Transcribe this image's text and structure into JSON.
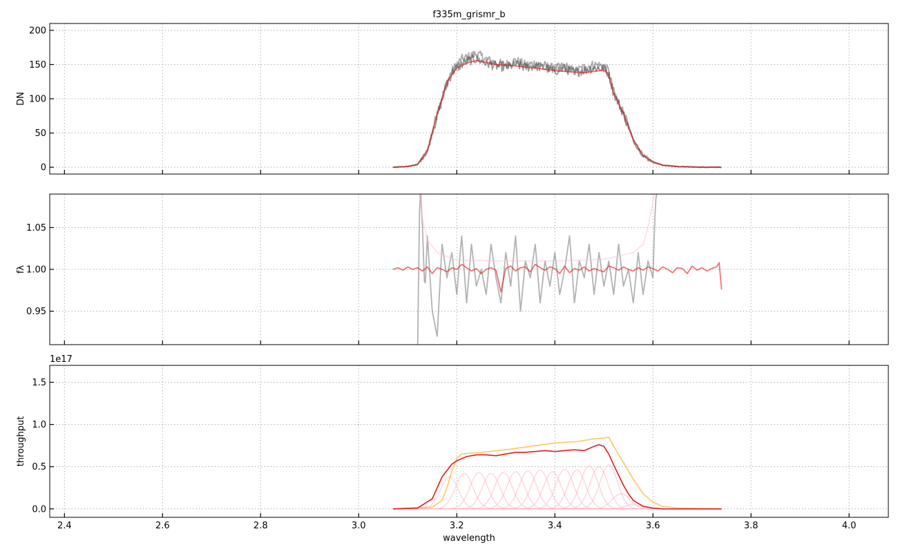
{
  "chart_data": [
    {
      "type": "line",
      "title": "f335m_grismr_b",
      "xlabel": "",
      "ylabel": "DN",
      "xlim": [
        2.37,
        4.08
      ],
      "ylim": [
        -10,
        210
      ],
      "xticks": [
        2.4,
        2.6,
        2.8,
        3.0,
        3.2,
        3.4,
        3.6,
        3.8,
        4.0
      ],
      "yticks": [
        0,
        50,
        100,
        150,
        200
      ],
      "ytick_labels": [
        "0",
        "50",
        "100",
        "150",
        "200"
      ],
      "show_x_tick_labels": false,
      "grid": true,
      "series": [
        {
          "style": "gray-noisy",
          "color": "#5a5a5a",
          "opacity": 0.5,
          "x": [
            3.07,
            3.1,
            3.12,
            3.14,
            3.16,
            3.18,
            3.19,
            3.2,
            3.21,
            3.22,
            3.24,
            3.26,
            3.28,
            3.3,
            3.32,
            3.34,
            3.36,
            3.38,
            3.4,
            3.42,
            3.44,
            3.46,
            3.48,
            3.5,
            3.51,
            3.52,
            3.54,
            3.56,
            3.58,
            3.6,
            3.62,
            3.65,
            3.7,
            3.74
          ],
          "y": [
            0,
            1,
            4,
            25,
            80,
            125,
            140,
            150,
            158,
            160,
            166,
            158,
            152,
            150,
            156,
            149,
            152,
            148,
            144,
            148,
            140,
            146,
            150,
            148,
            140,
            110,
            80,
            40,
            18,
            8,
            3,
            1,
            0,
            0
          ]
        },
        {
          "style": "gray-noisy",
          "color": "#3a3a3a",
          "opacity": 0.5,
          "x": [
            3.07,
            3.1,
            3.12,
            3.14,
            3.16,
            3.18,
            3.19,
            3.2,
            3.21,
            3.22,
            3.24,
            3.26,
            3.28,
            3.3,
            3.32,
            3.34,
            3.36,
            3.38,
            3.4,
            3.42,
            3.44,
            3.46,
            3.48,
            3.5,
            3.51,
            3.52,
            3.54,
            3.56,
            3.58,
            3.6,
            3.62,
            3.65,
            3.7,
            3.74
          ],
          "y": [
            0,
            1,
            4,
            22,
            75,
            120,
            138,
            145,
            150,
            155,
            158,
            152,
            148,
            146,
            150,
            146,
            148,
            145,
            141,
            144,
            138,
            142,
            145,
            144,
            136,
            108,
            78,
            38,
            16,
            7,
            3,
            1,
            0,
            0
          ]
        },
        {
          "style": "model",
          "color": "#e31a1c",
          "opacity": 0.65,
          "x": [
            3.07,
            3.1,
            3.12,
            3.14,
            3.16,
            3.18,
            3.2,
            3.22,
            3.24,
            3.26,
            3.28,
            3.3,
            3.32,
            3.34,
            3.36,
            3.38,
            3.4,
            3.42,
            3.44,
            3.46,
            3.48,
            3.5,
            3.51,
            3.52,
            3.54,
            3.56,
            3.58,
            3.6,
            3.62,
            3.65,
            3.7,
            3.74
          ],
          "y": [
            0,
            1,
            4,
            24,
            78,
            125,
            145,
            152,
            156,
            153,
            150,
            149,
            148,
            146,
            145,
            143,
            141,
            140,
            139,
            138,
            140,
            142,
            135,
            108,
            78,
            40,
            17,
            8,
            3,
            1,
            0,
            0
          ]
        }
      ]
    },
    {
      "type": "line",
      "title": "",
      "xlabel": "",
      "ylabel": "fλ",
      "xlim": [
        2.37,
        4.08
      ],
      "ylim": [
        0.91,
        1.09
      ],
      "xticks": [
        2.4,
        2.6,
        2.8,
        3.0,
        3.2,
        3.4,
        3.6,
        3.8,
        4.0
      ],
      "yticks": [
        0.95,
        1.0,
        1.05
      ],
      "ytick_labels": [
        "0.95",
        "1.00",
        "1.05"
      ],
      "show_x_tick_labels": false,
      "grid": true,
      "series": [
        {
          "style": "ratio-noisy",
          "color": "#7f7f7f",
          "opacity": 0.6,
          "x": [
            3.12,
            3.125,
            3.13,
            3.135,
            3.14,
            3.15,
            3.16,
            3.17,
            3.18,
            3.19,
            3.2,
            3.21,
            3.22,
            3.23,
            3.24,
            3.25,
            3.26,
            3.27,
            3.28,
            3.29,
            3.3,
            3.31,
            3.32,
            3.33,
            3.34,
            3.35,
            3.36,
            3.37,
            3.38,
            3.39,
            3.4,
            3.41,
            3.42,
            3.43,
            3.44,
            3.45,
            3.46,
            3.47,
            3.48,
            3.49,
            3.5,
            3.51,
            3.52,
            3.53,
            3.54,
            3.55,
            3.56,
            3.57,
            3.58,
            3.59,
            3.6,
            3.605,
            3.61,
            3.615
          ],
          "y": [
            0.9,
            1.11,
            1.05,
            0.97,
            1.04,
            0.95,
            0.92,
            1.03,
            0.99,
            1.02,
            0.97,
            1.04,
            0.96,
            1.03,
            0.98,
            1.0,
            0.97,
            1.03,
            0.99,
            0.96,
            1.02,
            0.98,
            1.04,
            0.95,
            1.01,
            0.99,
            1.03,
            0.96,
            1.01,
            0.98,
            1.02,
            0.97,
            1.0,
            1.04,
            0.96,
            1.01,
            0.99,
            1.03,
            0.97,
            1.02,
            0.98,
            1.01,
            0.97,
            1.03,
            0.98,
            1.0,
            0.96,
            1.02,
            0.97,
            1.01,
            0.99,
            1.08,
            1.1,
            1.11
          ]
        },
        {
          "style": "ratio-envelope",
          "color": "#ffc0cb",
          "opacity": 0.5,
          "x": [
            3.12,
            3.13,
            3.14,
            3.16,
            3.2,
            3.3,
            3.4,
            3.5,
            3.56,
            3.58,
            3.59,
            3.6,
            3.61
          ],
          "y": [
            1.11,
            1.06,
            1.035,
            1.02,
            1.011,
            1.01,
            1.01,
            1.012,
            1.02,
            1.03,
            1.05,
            1.08,
            1.11
          ]
        },
        {
          "style": "model",
          "color": "#e31a1c",
          "opacity": 0.6,
          "x": [
            3.07,
            3.08,
            3.09,
            3.1,
            3.11,
            3.12,
            3.13,
            3.14,
            3.15,
            3.16,
            3.17,
            3.18,
            3.19,
            3.2,
            3.21,
            3.22,
            3.23,
            3.24,
            3.25,
            3.26,
            3.27,
            3.28,
            3.29,
            3.3,
            3.31,
            3.32,
            3.33,
            3.34,
            3.35,
            3.36,
            3.37,
            3.38,
            3.39,
            3.4,
            3.41,
            3.42,
            3.43,
            3.44,
            3.45,
            3.46,
            3.47,
            3.48,
            3.49,
            3.5,
            3.51,
            3.52,
            3.53,
            3.54,
            3.55,
            3.56,
            3.57,
            3.58,
            3.59,
            3.6,
            3.61,
            3.62,
            3.63,
            3.64,
            3.65,
            3.66,
            3.67,
            3.68,
            3.69,
            3.7,
            3.71,
            3.72,
            3.73,
            3.735,
            3.74
          ],
          "y": [
            1.0,
            1.002,
            0.999,
            1.003,
            1.0,
            1.002,
            0.998,
            1.003,
            0.995,
            1.002,
            1.0,
            0.997,
            1.002,
            1.0,
            1.006,
            1.002,
            0.998,
            1.001,
            0.995,
            1.0,
            1.002,
            0.999,
            0.973,
            1.001,
            1.004,
            0.998,
            1.002,
            1.003,
            0.997,
            1.006,
            1.002,
            0.999,
            1.003,
            1.001,
            0.995,
            1.004,
            0.996,
            1.001,
            0.999,
            1.003,
            0.998,
            1.001,
            0.999,
            0.997,
            1.004,
            1.002,
            0.999,
            1.003,
            1.0,
            0.998,
            1.002,
            0.999,
            1.003,
            1.001,
            0.998,
            1.003,
            1.0,
            0.996,
            1.002,
            1.001,
            0.995,
            1.004,
            0.999,
            1.002,
            0.998,
            1.001,
            1.003,
            1.008,
            0.976
          ]
        }
      ]
    },
    {
      "type": "line",
      "title": "",
      "xlabel": "wavelength",
      "ylabel": "throughput",
      "offset_text": "1e17",
      "xlim": [
        2.37,
        4.08
      ],
      "ylim": [
        -0.1,
        1.7
      ],
      "xticks": [
        2.4,
        2.6,
        2.8,
        3.0,
        3.2,
        3.4,
        3.6,
        3.8,
        4.0
      ],
      "xtick_labels": [
        "2.4",
        "2.6",
        "2.8",
        "3.0",
        "3.2",
        "3.4",
        "3.6",
        "3.8",
        "4.0"
      ],
      "yticks": [
        0.0,
        0.5,
        1.0,
        1.5
      ],
      "ytick_labels": [
        "0.0",
        "0.5",
        "1.0",
        "1.5"
      ],
      "show_x_tick_labels": true,
      "grid": true,
      "series": [
        {
          "style": "envelope",
          "color": "#fdae2b",
          "opacity": 0.65,
          "x": [
            3.07,
            3.15,
            3.17,
            3.18,
            3.19,
            3.2,
            3.21,
            3.25,
            3.3,
            3.35,
            3.4,
            3.45,
            3.48,
            3.5,
            3.51,
            3.52,
            3.54,
            3.56,
            3.58,
            3.6,
            3.62,
            3.65,
            3.74
          ],
          "y": [
            0,
            0.02,
            0.1,
            0.25,
            0.45,
            0.6,
            0.65,
            0.67,
            0.7,
            0.74,
            0.78,
            0.8,
            0.83,
            0.84,
            0.85,
            0.74,
            0.55,
            0.35,
            0.18,
            0.08,
            0.03,
            0.01,
            0
          ]
        },
        {
          "style": "total",
          "color": "#e31a1c",
          "opacity": 1,
          "x": [
            3.07,
            3.12,
            3.15,
            3.17,
            3.19,
            3.2,
            3.22,
            3.24,
            3.26,
            3.28,
            3.3,
            3.32,
            3.34,
            3.36,
            3.38,
            3.4,
            3.42,
            3.44,
            3.46,
            3.48,
            3.49,
            3.5,
            3.51,
            3.52,
            3.53,
            3.54,
            3.55,
            3.56,
            3.58,
            3.6,
            3.62,
            3.65,
            3.74
          ],
          "y": [
            0,
            0.01,
            0.12,
            0.38,
            0.53,
            0.57,
            0.62,
            0.64,
            0.64,
            0.63,
            0.65,
            0.67,
            0.67,
            0.68,
            0.69,
            0.68,
            0.69,
            0.7,
            0.69,
            0.74,
            0.76,
            0.74,
            0.65,
            0.52,
            0.4,
            0.28,
            0.18,
            0.1,
            0.03,
            0.01,
            0,
            0,
            0
          ]
        }
      ],
      "components": {
        "color": "#ffb6c1",
        "opacity": 0.55,
        "x_range": [
          3.07,
          3.74
        ],
        "centers": [
          3.185,
          3.215,
          3.245,
          3.27,
          3.295,
          3.32,
          3.345,
          3.37,
          3.395,
          3.42,
          3.445,
          3.47,
          3.49,
          3.51,
          3.535,
          3.56
        ],
        "peaks": [
          0.38,
          0.42,
          0.43,
          0.42,
          0.43,
          0.44,
          0.45,
          0.46,
          0.44,
          0.47,
          0.46,
          0.51,
          0.5,
          0.52,
          0.18,
          0.05
        ],
        "sigma": 0.018
      }
    }
  ]
}
